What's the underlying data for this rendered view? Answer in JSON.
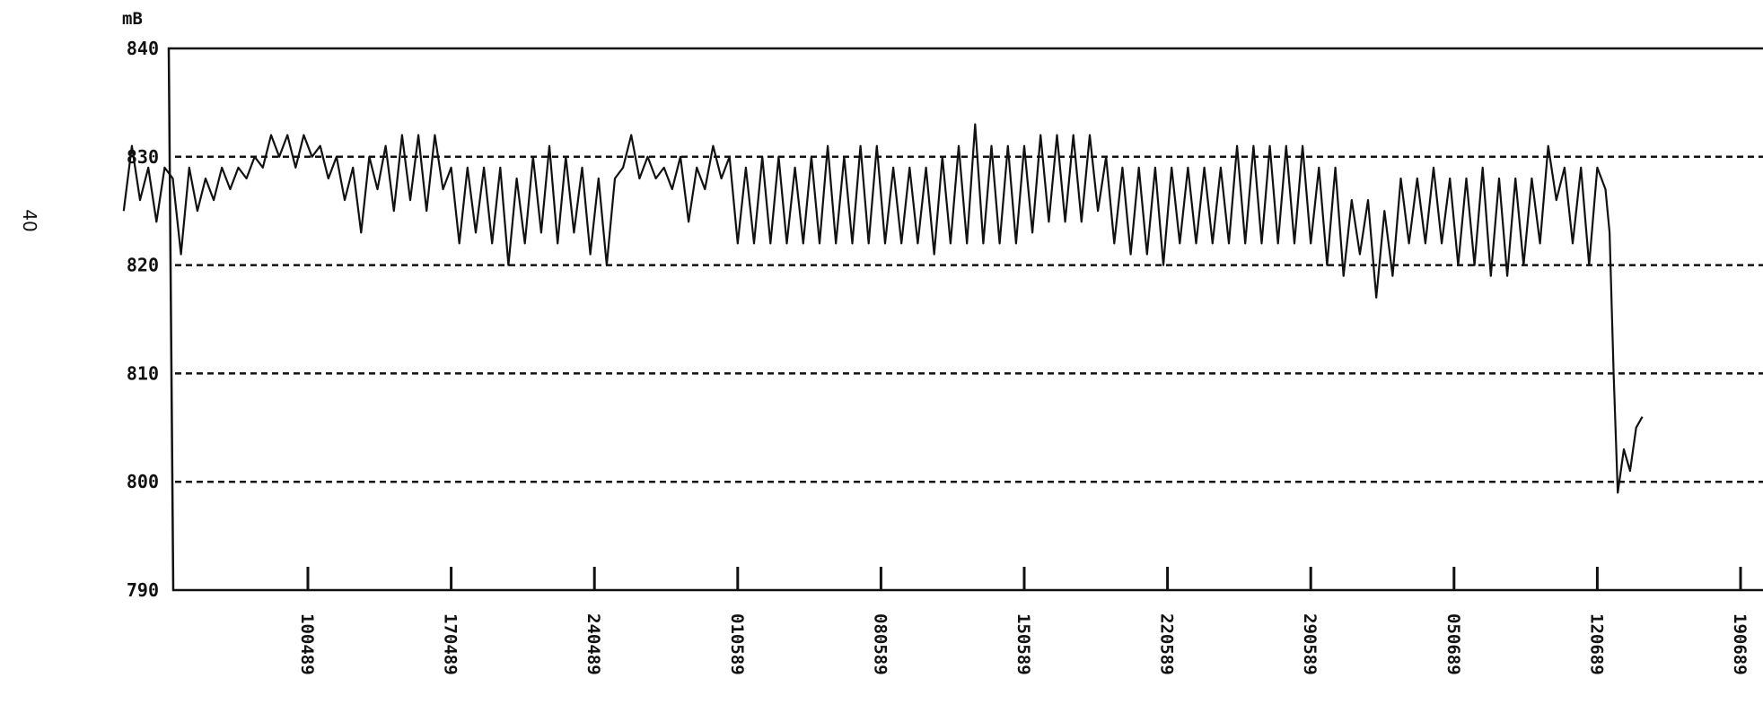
{
  "page_number": "40",
  "chart_data": {
    "type": "line",
    "title": "",
    "xlabel": "",
    "ylabel": "mB",
    "ylim": [
      790,
      840
    ],
    "yticks": [
      "840",
      "830",
      "820",
      "810",
      "800",
      "790"
    ],
    "grid": "dashed horizontal lines at 800, 810, 820, 830",
    "x_tick_labels": [
      "100489",
      "170489",
      "240489",
      "010589",
      "080589",
      "150589",
      "220589",
      "290589",
      "050689",
      "120689",
      "190689"
    ],
    "x_range_days": [
      -9,
      74
    ],
    "series": [
      {
        "color": "#111111",
        "points": [
          [
            -9.0,
            825
          ],
          [
            -8.6,
            831
          ],
          [
            -8.2,
            826
          ],
          [
            -7.8,
            829
          ],
          [
            -7.4,
            824
          ],
          [
            -7.0,
            829
          ],
          [
            -6.6,
            828
          ],
          [
            -6.2,
            821
          ],
          [
            -5.8,
            829
          ],
          [
            -5.4,
            825
          ],
          [
            -5.0,
            828
          ],
          [
            -4.6,
            826
          ],
          [
            -4.2,
            829
          ],
          [
            -3.8,
            827
          ],
          [
            -3.4,
            829
          ],
          [
            -3.0,
            828
          ],
          [
            -2.6,
            830
          ],
          [
            -2.2,
            829
          ],
          [
            -1.8,
            832
          ],
          [
            -1.4,
            830
          ],
          [
            -1.0,
            832
          ],
          [
            -0.6,
            829
          ],
          [
            -0.2,
            832
          ],
          [
            0.2,
            830
          ],
          [
            0.6,
            831
          ],
          [
            1.0,
            828
          ],
          [
            1.4,
            830
          ],
          [
            1.8,
            826
          ],
          [
            2.2,
            829
          ],
          [
            2.6,
            823
          ],
          [
            3.0,
            830
          ],
          [
            3.4,
            827
          ],
          [
            3.8,
            831
          ],
          [
            4.2,
            825
          ],
          [
            4.6,
            832
          ],
          [
            5.0,
            826
          ],
          [
            5.4,
            832
          ],
          [
            5.8,
            825
          ],
          [
            6.2,
            832
          ],
          [
            6.6,
            827
          ],
          [
            7.0,
            829
          ],
          [
            7.4,
            822
          ],
          [
            7.8,
            829
          ],
          [
            8.2,
            823
          ],
          [
            8.6,
            829
          ],
          [
            9.0,
            822
          ],
          [
            9.4,
            829
          ],
          [
            9.8,
            820
          ],
          [
            10.2,
            828
          ],
          [
            10.6,
            822
          ],
          [
            11.0,
            830
          ],
          [
            11.4,
            823
          ],
          [
            11.8,
            831
          ],
          [
            12.2,
            822
          ],
          [
            12.6,
            830
          ],
          [
            13.0,
            823
          ],
          [
            13.4,
            829
          ],
          [
            13.8,
            821
          ],
          [
            14.2,
            828
          ],
          [
            14.6,
            820
          ],
          [
            15.0,
            828
          ],
          [
            15.4,
            829
          ],
          [
            15.8,
            832
          ],
          [
            16.2,
            828
          ],
          [
            16.6,
            830
          ],
          [
            17.0,
            828
          ],
          [
            17.4,
            829
          ],
          [
            17.8,
            827
          ],
          [
            18.2,
            830
          ],
          [
            18.6,
            824
          ],
          [
            19.0,
            829
          ],
          [
            19.4,
            827
          ],
          [
            19.8,
            831
          ],
          [
            20.2,
            828
          ],
          [
            20.6,
            830
          ],
          [
            21.0,
            822
          ],
          [
            21.4,
            829
          ],
          [
            21.8,
            822
          ],
          [
            22.2,
            830
          ],
          [
            22.6,
            822
          ],
          [
            23.0,
            830
          ],
          [
            23.4,
            822
          ],
          [
            23.8,
            829
          ],
          [
            24.2,
            822
          ],
          [
            24.6,
            830
          ],
          [
            25.0,
            822
          ],
          [
            25.4,
            831
          ],
          [
            25.8,
            822
          ],
          [
            26.2,
            830
          ],
          [
            26.6,
            822
          ],
          [
            27.0,
            831
          ],
          [
            27.4,
            822
          ],
          [
            27.8,
            831
          ],
          [
            28.2,
            822
          ],
          [
            28.6,
            829
          ],
          [
            29.0,
            822
          ],
          [
            29.4,
            829
          ],
          [
            29.8,
            822
          ],
          [
            30.2,
            829
          ],
          [
            30.6,
            821
          ],
          [
            31.0,
            830
          ],
          [
            31.4,
            822
          ],
          [
            31.8,
            831
          ],
          [
            32.2,
            822
          ],
          [
            32.6,
            833
          ],
          [
            33.0,
            822
          ],
          [
            33.4,
            831
          ],
          [
            33.8,
            822
          ],
          [
            34.2,
            831
          ],
          [
            34.6,
            822
          ],
          [
            35.0,
            831
          ],
          [
            35.4,
            823
          ],
          [
            35.8,
            832
          ],
          [
            36.2,
            824
          ],
          [
            36.6,
            832
          ],
          [
            37.0,
            824
          ],
          [
            37.4,
            832
          ],
          [
            37.8,
            824
          ],
          [
            38.2,
            832
          ],
          [
            38.6,
            825
          ],
          [
            39.0,
            830
          ],
          [
            39.4,
            822
          ],
          [
            39.8,
            829
          ],
          [
            40.2,
            821
          ],
          [
            40.6,
            829
          ],
          [
            41.0,
            821
          ],
          [
            41.4,
            829
          ],
          [
            41.8,
            820
          ],
          [
            42.2,
            829
          ],
          [
            42.6,
            822
          ],
          [
            43.0,
            829
          ],
          [
            43.4,
            822
          ],
          [
            43.8,
            829
          ],
          [
            44.2,
            822
          ],
          [
            44.6,
            829
          ],
          [
            45.0,
            822
          ],
          [
            45.4,
            831
          ],
          [
            45.8,
            822
          ],
          [
            46.2,
            831
          ],
          [
            46.6,
            822
          ],
          [
            47.0,
            831
          ],
          [
            47.4,
            822
          ],
          [
            47.8,
            831
          ],
          [
            48.2,
            822
          ],
          [
            48.6,
            831
          ],
          [
            49.0,
            822
          ],
          [
            49.4,
            829
          ],
          [
            49.8,
            820
          ],
          [
            50.2,
            829
          ],
          [
            50.6,
            819
          ],
          [
            51.0,
            826
          ],
          [
            51.4,
            821
          ],
          [
            51.8,
            826
          ],
          [
            52.2,
            817
          ],
          [
            52.6,
            825
          ],
          [
            53.0,
            819
          ],
          [
            53.4,
            828
          ],
          [
            53.8,
            822
          ],
          [
            54.2,
            828
          ],
          [
            54.6,
            822
          ],
          [
            55.0,
            829
          ],
          [
            55.4,
            822
          ],
          [
            55.8,
            828
          ],
          [
            56.2,
            820
          ],
          [
            56.6,
            828
          ],
          [
            57.0,
            820
          ],
          [
            57.4,
            829
          ],
          [
            57.8,
            819
          ],
          [
            58.2,
            828
          ],
          [
            58.6,
            819
          ],
          [
            59.0,
            828
          ],
          [
            59.4,
            820
          ],
          [
            59.8,
            828
          ],
          [
            60.2,
            822
          ],
          [
            60.6,
            831
          ],
          [
            61.0,
            826
          ],
          [
            61.4,
            829
          ],
          [
            61.8,
            822
          ],
          [
            62.2,
            829
          ],
          [
            62.6,
            820
          ],
          [
            63.0,
            829
          ],
          [
            63.4,
            827
          ],
          [
            63.6,
            823
          ],
          [
            63.8,
            810
          ],
          [
            64.0,
            799
          ],
          [
            64.3,
            803
          ],
          [
            64.6,
            801
          ],
          [
            64.9,
            805
          ],
          [
            65.2,
            806
          ]
        ]
      }
    ]
  }
}
